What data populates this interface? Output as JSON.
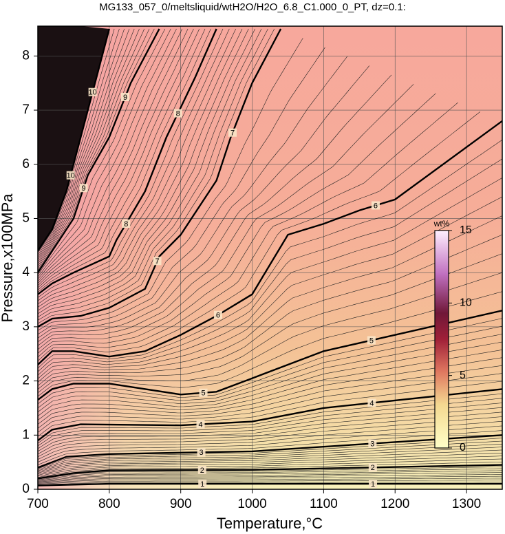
{
  "chart_data": {
    "type": "contour",
    "title": "MG133_057_0/meltsliquid/wtH2O/H2O_6.8_C1.000_0_PT, dz=0.1:",
    "x_label": "Temperature,°C",
    "y_label": "Pressure,x100MPa",
    "xlim": [
      700,
      1350
    ],
    "ylim": [
      0,
      8.5
    ],
    "xticks": [
      700,
      800,
      900,
      1000,
      1100,
      1200,
      1300
    ],
    "yticks": [
      0,
      1,
      2,
      3,
      4,
      5,
      6,
      7,
      8
    ],
    "grid": true,
    "contours": [
      {
        "level": 1,
        "x": [
          700,
          800,
          1350
        ],
        "y": [
          0.07,
          0.1,
          0.1
        ]
      },
      {
        "level": 2,
        "x": [
          700,
          750,
          800,
          1000,
          1350
        ],
        "y": [
          0.2,
          0.3,
          0.35,
          0.36,
          0.45
        ]
      },
      {
        "level": 3,
        "x": [
          700,
          740,
          800,
          1000,
          1350
        ],
        "y": [
          0.4,
          0.6,
          0.65,
          0.7,
          1.0
        ]
      },
      {
        "level": 4,
        "x": [
          700,
          720,
          760,
          900,
          1000,
          1100,
          1350
        ],
        "y": [
          0.9,
          1.1,
          1.2,
          1.18,
          1.25,
          1.5,
          1.85
        ]
      },
      {
        "level": 5,
        "x": [
          700,
          720,
          750,
          800,
          900,
          950,
          1000,
          1100,
          1200,
          1350
        ],
        "y": [
          1.65,
          1.85,
          1.95,
          1.95,
          1.75,
          1.8,
          2.05,
          2.55,
          2.85,
          3.3
        ]
      },
      {
        "level": 6,
        "x": [
          700,
          720,
          750,
          800,
          850,
          900,
          950,
          1000,
          1050,
          1100,
          1150,
          1200,
          1350
        ],
        "y": [
          2.3,
          2.55,
          2.55,
          2.45,
          2.55,
          2.85,
          3.2,
          3.6,
          4.7,
          4.9,
          5.15,
          5.35,
          6.8
        ]
      },
      {
        "level": 7,
        "x": [
          700,
          720,
          760,
          800,
          850,
          870,
          900,
          950,
          970,
          1000,
          1040
        ],
        "y": [
          3.0,
          3.15,
          3.2,
          3.35,
          3.7,
          4.3,
          4.7,
          5.7,
          6.5,
          7.5,
          8.5
        ]
      },
      {
        "level": 8,
        "x": [
          700,
          720,
          750,
          800,
          810,
          850,
          880,
          920,
          950
        ],
        "y": [
          3.6,
          3.8,
          4.0,
          4.3,
          4.6,
          5.5,
          6.5,
          7.6,
          8.5
        ]
      },
      {
        "level": 9,
        "x": [
          700,
          730,
          750,
          770,
          800,
          830,
          870
        ],
        "y": [
          4.0,
          4.6,
          5.0,
          5.8,
          6.5,
          7.5,
          8.5
        ]
      },
      {
        "level": 10,
        "x": [
          700,
          720,
          740,
          760,
          780,
          800
        ],
        "y": [
          4.4,
          4.8,
          5.5,
          6.5,
          7.5,
          8.5
        ]
      }
    ],
    "colorbar": {
      "label": "wt%",
      "lim": [
        0,
        15
      ],
      "ticks": [
        0,
        5,
        10,
        15
      ]
    }
  }
}
